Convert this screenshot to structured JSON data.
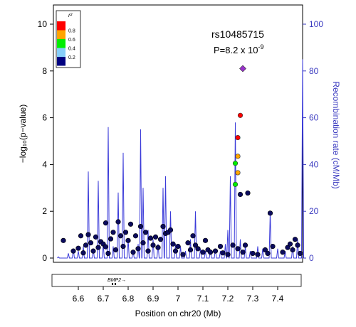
{
  "chart_data": {
    "type": "scatter",
    "xlabel": "Position on chr20 (Mb)",
    "ylabel_left": "−log₁₀(p−value)",
    "ylabel_right": "Recombination rate (cM/Mb)",
    "xlim": [
      6.5,
      7.5
    ],
    "ylim_left": [
      0,
      10
    ],
    "ylim_right": [
      0,
      100
    ],
    "x_ticks": [
      "6.6",
      "6.7",
      "6.8",
      "6.9",
      "7",
      "7.1",
      "7.2",
      "7.3",
      "7.4"
    ],
    "y_ticks_left": [
      "0",
      "2",
      "4",
      "6",
      "8",
      "10"
    ],
    "y_ticks_right": [
      "0",
      "20",
      "40",
      "60",
      "80",
      "100"
    ],
    "annotation": {
      "snp": "rs10485715",
      "p_prefix": "P=8.2 x 10",
      "p_exponent": "-9"
    },
    "legend": {
      "title": "r²",
      "placement": "top-left",
      "colors": [
        "#ff0000",
        "#ffa500",
        "#00ee00",
        "#87cefa",
        "#000080"
      ],
      "labels": [
        "0.8",
        "0.6",
        "0.4",
        "0.2"
      ]
    },
    "gene": {
      "label": "BMP2",
      "arrow": "→"
    },
    "colors": {
      "recombination": "#3b3bd9",
      "lead_snp": "#9932cc",
      "axis_right": "#3b3bc0"
    },
    "lead_snp": {
      "x": 7.26,
      "y": 8.1
    },
    "colored_snps": [
      {
        "x": 7.25,
        "y": 6.1,
        "color": "#ff0000"
      },
      {
        "x": 7.24,
        "y": 5.15,
        "color": "#ff0000"
      },
      {
        "x": 7.24,
        "y": 4.35,
        "color": "#ffa500"
      },
      {
        "x": 7.24,
        "y": 3.65,
        "color": "#ffa500"
      },
      {
        "x": 7.23,
        "y": 4.05,
        "color": "#00ee00"
      },
      {
        "x": 7.23,
        "y": 3.15,
        "color": "#00ee00"
      }
    ],
    "low_ld_snps": [
      [
        7.25,
        2.72
      ],
      [
        7.28,
        2.78
      ],
      [
        7.37,
        1.92
      ],
      [
        6.54,
        0.75
      ],
      [
        6.58,
        0.3
      ],
      [
        6.6,
        0.42
      ],
      [
        6.61,
        0.95
      ],
      [
        6.62,
        0.22
      ],
      [
        6.63,
        0.55
      ],
      [
        6.64,
        1.0
      ],
      [
        6.65,
        0.65
      ],
      [
        6.66,
        0.3
      ],
      [
        6.67,
        0.9
      ],
      [
        6.68,
        0.45
      ],
      [
        6.69,
        0.7
      ],
      [
        6.7,
        0.6
      ],
      [
        6.71,
        0.48
      ],
      [
        6.71,
        1.5
      ],
      [
        6.72,
        0.2
      ],
      [
        6.73,
        0.82
      ],
      [
        6.74,
        1.1
      ],
      [
        6.75,
        0.35
      ],
      [
        6.76,
        1.55
      ],
      [
        6.77,
        0.95
      ],
      [
        6.78,
        0.5
      ],
      [
        6.79,
        1.1
      ],
      [
        6.8,
        0.75
      ],
      [
        6.81,
        1.45
      ],
      [
        6.82,
        0.25
      ],
      [
        6.83,
        0.95
      ],
      [
        6.84,
        0.4
      ],
      [
        6.85,
        1.35
      ],
      [
        6.86,
        0.65
      ],
      [
        6.87,
        1.1
      ],
      [
        6.88,
        0.3
      ],
      [
        6.89,
        0.85
      ],
      [
        6.9,
        0.55
      ],
      [
        6.91,
        0.9
      ],
      [
        6.92,
        0.45
      ],
      [
        6.93,
        0.8
      ],
      [
        6.94,
        1.35
      ],
      [
        6.95,
        1.05
      ],
      [
        6.96,
        1.1
      ],
      [
        6.97,
        1.2
      ],
      [
        6.98,
        0.6
      ],
      [
        6.99,
        0.3
      ],
      [
        7.0,
        0.5
      ],
      [
        7.02,
        0.15
      ],
      [
        7.04,
        0.65
      ],
      [
        7.05,
        0.35
      ],
      [
        7.06,
        0.95
      ],
      [
        7.07,
        0.55
      ],
      [
        7.08,
        0.4
      ],
      [
        7.1,
        0.25
      ],
      [
        7.11,
        0.75
      ],
      [
        7.12,
        0.35
      ],
      [
        7.13,
        0.25
      ],
      [
        7.15,
        0.3
      ],
      [
        7.17,
        0.5
      ],
      [
        7.18,
        0.22
      ],
      [
        7.2,
        0.15
      ],
      [
        7.22,
        0.55
      ],
      [
        7.24,
        0.4
      ],
      [
        7.26,
        0.25
      ],
      [
        7.27,
        0.55
      ],
      [
        7.3,
        0.2
      ],
      [
        7.32,
        0.15
      ],
      [
        7.35,
        0.35
      ],
      [
        7.36,
        0.2
      ],
      [
        7.38,
        0.5
      ],
      [
        7.42,
        0.25
      ],
      [
        7.44,
        0.45
      ],
      [
        7.45,
        0.6
      ],
      [
        7.46,
        0.35
      ],
      [
        7.47,
        0.8
      ],
      [
        7.48,
        0.55
      ],
      [
        7.49,
        0.2
      ]
    ],
    "recombination_peaks": [
      [
        6.52,
        0.5
      ],
      [
        6.56,
        2
      ],
      [
        6.58,
        4
      ],
      [
        6.6,
        3
      ],
      [
        6.62,
        5
      ],
      [
        6.64,
        37
      ],
      [
        6.66,
        4
      ],
      [
        6.68,
        33
      ],
      [
        6.7,
        6
      ],
      [
        6.72,
        56
      ],
      [
        6.74,
        5
      ],
      [
        6.76,
        28
      ],
      [
        6.78,
        45
      ],
      [
        6.8,
        8
      ],
      [
        6.82,
        3
      ],
      [
        6.84,
        6
      ],
      [
        6.85,
        55
      ],
      [
        6.86,
        30
      ],
      [
        6.88,
        12
      ],
      [
        6.9,
        8
      ],
      [
        6.92,
        6
      ],
      [
        6.94,
        30
      ],
      [
        6.95,
        35
      ],
      [
        6.97,
        20
      ],
      [
        6.99,
        6
      ],
      [
        7.01,
        5
      ],
      [
        7.03,
        3
      ],
      [
        7.05,
        8
      ],
      [
        7.07,
        20
      ],
      [
        7.09,
        4
      ],
      [
        7.11,
        3
      ],
      [
        7.13,
        3
      ],
      [
        7.15,
        4
      ],
      [
        7.17,
        3
      ],
      [
        7.19,
        6
      ],
      [
        7.2,
        12
      ],
      [
        7.21,
        35
      ],
      [
        7.23,
        58
      ],
      [
        7.25,
        8
      ],
      [
        7.27,
        5
      ],
      [
        7.29,
        3
      ],
      [
        7.32,
        5
      ],
      [
        7.34,
        4
      ],
      [
        7.37,
        20
      ],
      [
        7.4,
        4
      ],
      [
        7.43,
        3
      ],
      [
        7.46,
        5
      ],
      [
        7.48,
        8
      ],
      [
        7.5,
        85
      ]
    ]
  }
}
